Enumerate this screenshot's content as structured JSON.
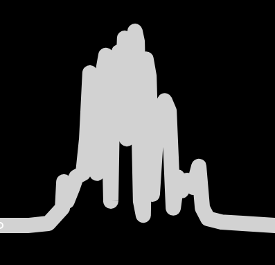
{
  "chart_data": {
    "type": "line",
    "color": "#d2d2d2",
    "tick_labels": false,
    "grid": false,
    "x": [
      0,
      10.1,
      17.6,
      22.7,
      23.2,
      24.4,
      26.4,
      27.7,
      30.2,
      31.5,
      32.7,
      34.0,
      35.3,
      36.5,
      37.8,
      38.5,
      39.8,
      40.3,
      41.1,
      42.3,
      43.3,
      44.3,
      45.3,
      46.1,
      46.9,
      47.9,
      49.1,
      49.9,
      51.1,
      52.1,
      53.1,
      54.2,
      55.4,
      56.7,
      58.4,
      59.9,
      61.5,
      63.0,
      64.5,
      66.0,
      68.0,
      70.3,
      72.3,
      73.6,
      75.6,
      80.6,
      88.2,
      100
    ],
    "values": [
      14.9,
      14.9,
      15.7,
      21.5,
      31.4,
      24.1,
      29.3,
      33.2,
      34.6,
      47.6,
      72.5,
      42.4,
      34.6,
      63.4,
      75.1,
      79.1,
      47.6,
      24.1,
      73.8,
      66.0,
      80.4,
      58.1,
      85.6,
      47.6,
      84.3,
      52.9,
      88.2,
      84.3,
      24.1,
      18.8,
      77.7,
      71.2,
      26.7,
      47.6,
      58.1,
      62.0,
      58.1,
      21.5,
      33.2,
      28.0,
      31.9,
      29.3,
      37.2,
      21.5,
      17.5,
      16.2,
      15.7,
      14.9
    ],
    "xlim": [
      0,
      100
    ],
    "ylim": [
      0,
      100
    ]
  }
}
